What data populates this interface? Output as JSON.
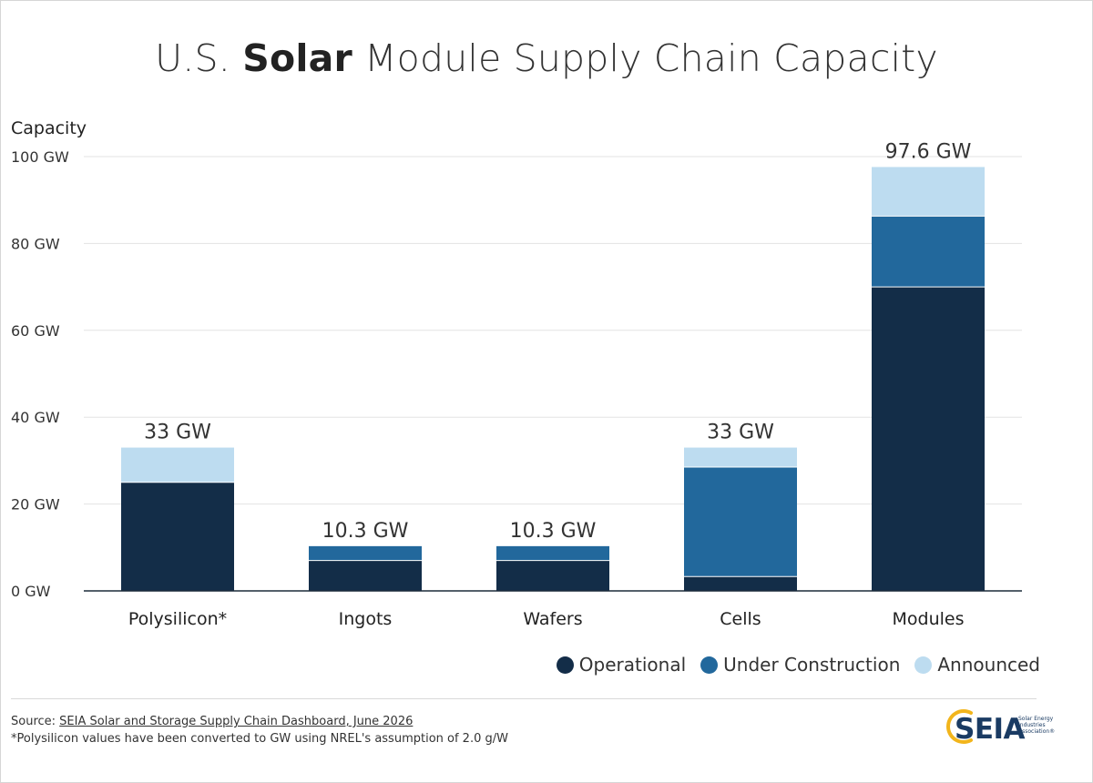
{
  "title": {
    "prefix": "U.S. ",
    "emphasis": "Solar",
    "suffix": " Module Supply Chain Capacity"
  },
  "chart_data": {
    "type": "bar",
    "stacked": true,
    "ylabel": "Capacity",
    "ylim": [
      0,
      100
    ],
    "yticks": [
      "0 GW",
      "20 GW",
      "40 GW",
      "60 GW",
      "80 GW",
      "100 GW"
    ],
    "ytick_values": [
      0,
      20,
      40,
      60,
      80,
      100
    ],
    "grid": true,
    "categories": [
      "Polysilicon*",
      "Ingots",
      "Wafers",
      "Cells",
      "Modules"
    ],
    "series": [
      {
        "name": "Operational",
        "color": "#132d48",
        "values": [
          25,
          7,
          7,
          3.3,
          70
        ]
      },
      {
        "name": "Under Construction",
        "color": "#22689c",
        "values": [
          0,
          3.3,
          3.3,
          25.2,
          16.3
        ]
      },
      {
        "name": "Announced",
        "color": "#bddcf0",
        "values": [
          8,
          0,
          0,
          4.5,
          11.3
        ]
      }
    ],
    "totals": [
      "33 GW",
      "10.3 GW",
      "10.3 GW",
      "33 GW",
      "97.6 GW"
    ],
    "legend_position": "bottom-right"
  },
  "footer": {
    "source_prefix": "Source: ",
    "source_link": "SEIA Solar and Storage Supply Chain Dashboard, June 2026",
    "note": "*Polysilicon values have been converted to GW using NREL's assumption of 2.0 g/W"
  },
  "logo": {
    "name": "SEIA",
    "line1": "Solar Energy",
    "line2": "Industries",
    "line3": "Association®",
    "arc_color": "#f2b51c"
  }
}
